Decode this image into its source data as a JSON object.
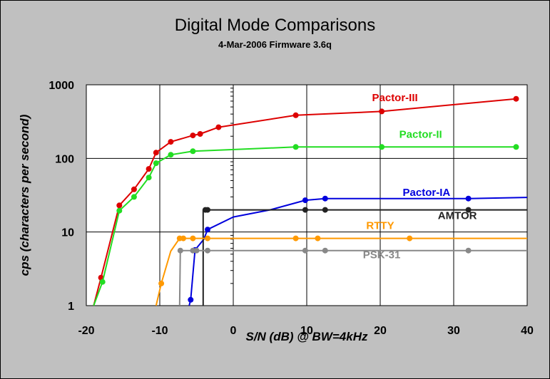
{
  "chart_data": {
    "type": "line",
    "title": "Digital Mode Comparisons",
    "subtitle": "4-Mar-2006 Firmware 3.6q",
    "xlabel": "S/N (dB) @ BW=4kHz",
    "ylabel": "cps (characters per second)",
    "xlim": [
      -20,
      40
    ],
    "ylim": [
      1,
      1000
    ],
    "yscale": "log",
    "grid": true,
    "xticks": [
      "-20",
      "-10",
      "0",
      "10",
      "20",
      "30",
      "40"
    ],
    "yticks": [
      "1",
      "10",
      "100",
      "1000"
    ],
    "series": [
      {
        "name": "Pactor-III",
        "color": "#dd0000",
        "points": [
          [
            -19,
            1
          ],
          [
            -18,
            2.4
          ],
          [
            -15.5,
            23
          ],
          [
            -13.5,
            38
          ],
          [
            -11.5,
            72
          ],
          [
            -10.5,
            120
          ],
          [
            -8.5,
            168
          ],
          [
            -5.5,
            205
          ],
          [
            -4.5,
            215
          ],
          [
            -2,
            265
          ],
          [
            8.5,
            385
          ],
          [
            20.2,
            435
          ],
          [
            38.5,
            645
          ]
        ],
        "markers": [
          [
            -18,
            2.4
          ],
          [
            -15.5,
            23
          ],
          [
            -13.5,
            38
          ],
          [
            -11.5,
            72
          ],
          [
            -10.5,
            120
          ],
          [
            -8.5,
            168
          ],
          [
            -5.5,
            205
          ],
          [
            -4.5,
            215
          ],
          [
            -2,
            265
          ],
          [
            8.5,
            385
          ],
          [
            20.2,
            435
          ],
          [
            38.5,
            645
          ]
        ]
      },
      {
        "name": "Pactor-II",
        "color": "#22dd22",
        "points": [
          [
            -19,
            1
          ],
          [
            -17.8,
            2.1
          ],
          [
            -15.5,
            19.5
          ],
          [
            -13.5,
            30
          ],
          [
            -11.5,
            55
          ],
          [
            -10.5,
            86
          ],
          [
            -8.5,
            112
          ],
          [
            -5.5,
            125
          ],
          [
            8.5,
            143
          ],
          [
            20.2,
            143
          ],
          [
            38.5,
            143
          ]
        ],
        "markers": [
          [
            -17.8,
            2.1
          ],
          [
            -15.5,
            19.5
          ],
          [
            -13.5,
            30
          ],
          [
            -11.5,
            55
          ],
          [
            -10.5,
            86
          ],
          [
            -8.5,
            112
          ],
          [
            -5.5,
            125
          ],
          [
            8.5,
            143
          ],
          [
            20.2,
            143
          ],
          [
            38.5,
            143
          ]
        ]
      },
      {
        "name": "Pactor-IA",
        "color": "#0000dd",
        "points": [
          [
            -6,
            1
          ],
          [
            -5.8,
            1.2
          ],
          [
            -5.2,
            5.7
          ],
          [
            -4,
            8
          ],
          [
            -3.5,
            10.8
          ],
          [
            0,
            16
          ],
          [
            5,
            20
          ],
          [
            9.8,
            27
          ],
          [
            12.5,
            28.5
          ],
          [
            32,
            28.5
          ],
          [
            40,
            29.5
          ]
        ],
        "markers": [
          [
            -5.8,
            1.2
          ],
          [
            -5.2,
            5.7
          ],
          [
            -3.5,
            10.8
          ],
          [
            9.8,
            27
          ],
          [
            12.5,
            28.5
          ],
          [
            32,
            28.5
          ]
        ]
      },
      {
        "name": "AMTOR",
        "color": "#222222",
        "points": [
          [
            -4.1,
            1
          ],
          [
            -4.1,
            20
          ],
          [
            40,
            20
          ]
        ],
        "markers": [
          [
            -3.8,
            20
          ],
          [
            -3.5,
            20
          ],
          [
            9.8,
            20
          ],
          [
            12.5,
            20
          ],
          [
            32,
            20
          ]
        ]
      },
      {
        "name": "RTTY",
        "color": "#ff9900",
        "points": [
          [
            -10.5,
            1
          ],
          [
            -9.8,
            2
          ],
          [
            -8.5,
            5.5
          ],
          [
            -7.3,
            8.2
          ],
          [
            40,
            8.2
          ]
        ],
        "markers": [
          [
            -9.8,
            2
          ],
          [
            -7.3,
            8.2
          ],
          [
            -6.8,
            8.2
          ],
          [
            -5.5,
            8.2
          ],
          [
            -3.5,
            8.2
          ],
          [
            8.5,
            8.2
          ],
          [
            11.5,
            8.2
          ],
          [
            24,
            8.2
          ]
        ]
      },
      {
        "name": "PSK-31",
        "color": "#888888",
        "points": [
          [
            -7.3,
            1
          ],
          [
            -7.2,
            5.6
          ],
          [
            40,
            5.6
          ]
        ],
        "markers": [
          [
            -7.2,
            5.6
          ],
          [
            -5.5,
            5.6
          ],
          [
            -5,
            5.6
          ],
          [
            -3.5,
            5.6
          ],
          [
            9.8,
            5.6
          ],
          [
            12.5,
            5.6
          ],
          [
            32,
            5.6
          ]
        ]
      }
    ],
    "labels": [
      {
        "text": "Pactor-III",
        "color": "#dd0000",
        "x": 22,
        "y": 600
      },
      {
        "text": "Pactor-II",
        "color": "#22dd22",
        "x": 25.5,
        "y": 190
      },
      {
        "text": "Pactor-IA",
        "color": "#0000dd",
        "x": 26.3,
        "y": 31
      },
      {
        "text": "AMTOR",
        "color": "#222222",
        "x": 30.5,
        "y": 15
      },
      {
        "text": "RTTY",
        "color": "#ff9900",
        "x": 20,
        "y": 11
      },
      {
        "text": "PSK-31",
        "color": "#888888",
        "x": 20.2,
        "y": 4.4
      }
    ]
  }
}
